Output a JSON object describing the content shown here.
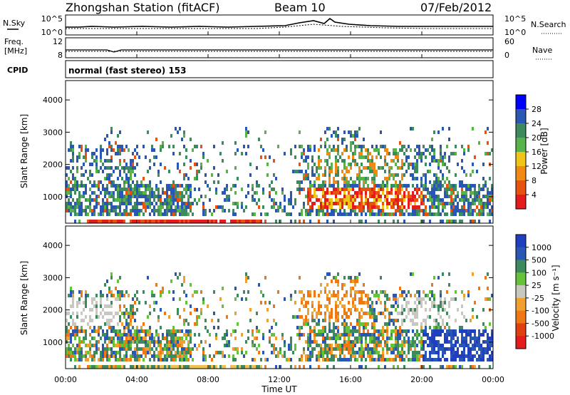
{
  "header": {
    "station": "Zhongshan Station (fitACF)",
    "beam": "Beam 10",
    "date": "07/Feb/2012"
  },
  "noise_panel": {
    "left_label": "N.Sky",
    "left_ticks": [
      "10^5",
      "10^0"
    ],
    "right_label": "N.Search",
    "right_ticks": [
      "10^5",
      "10^0"
    ]
  },
  "freq_panel": {
    "left_label_1": "Freq.",
    "left_label_2": "[MHz]",
    "left_ticks": [
      "12",
      "8"
    ],
    "right_label": "Nave",
    "right_ticks": [
      "60",
      "0"
    ]
  },
  "cpid": {
    "label": "CPID",
    "text": "normal (fast stereo) 153"
  },
  "chart_data": [
    {
      "type": "heatmap",
      "name": "power",
      "ylabel": "Slant Range [km]",
      "ylim": [
        180,
        4600
      ],
      "yticks": [
        "1000",
        "2000",
        "3000",
        "4000"
      ],
      "colorbar_label": "Power [dB]",
      "colorbar_ticks": [
        "4",
        "8",
        "12",
        "16",
        "20",
        "24",
        "28"
      ],
      "colorbar_colors": [
        "#0000ff",
        "#2a57b4",
        "#3c8a5e",
        "#5ab24a",
        "#f0c419",
        "#f08a14",
        "#e8520f",
        "#e41a1c"
      ]
    },
    {
      "type": "heatmap",
      "name": "velocity",
      "xlabel": "Time UT",
      "xticks": [
        "00:00",
        "04:00",
        "08:00",
        "12:00",
        "16:00",
        "20:00",
        "00:00"
      ],
      "xlim": [
        0,
        24
      ],
      "ylabel": "Slant Range [km]",
      "ylim": [
        180,
        4600
      ],
      "yticks": [
        "1000",
        "2000",
        "3000",
        "4000"
      ],
      "colorbar_label": "Velocity [m s⁻¹]",
      "colorbar_ticks": [
        "1000",
        "500",
        "100",
        "25",
        "-25",
        "-100",
        "-500",
        "-1000"
      ],
      "colorbar_colors": [
        "#1f3fbf",
        "#2a57b4",
        "#3c8a5e",
        "#66c23a",
        "#c8c8c0",
        "#f0a030",
        "#f07814",
        "#e04010",
        "#e41a1c"
      ]
    }
  ]
}
